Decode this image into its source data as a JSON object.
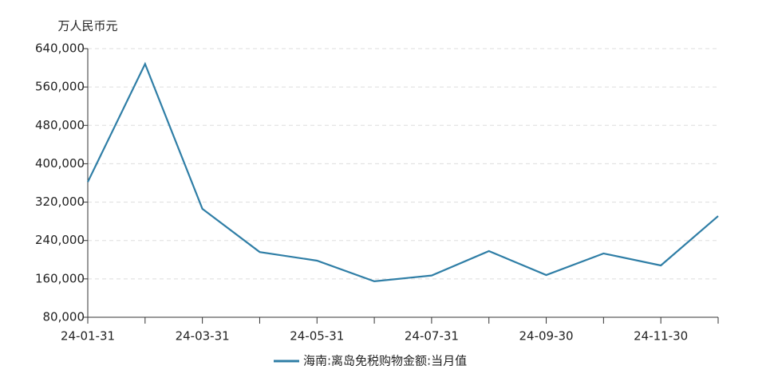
{
  "chart_data": {
    "type": "line",
    "y_label": "万人民币元",
    "categories": [
      "24-01-31",
      null,
      "24-03-31",
      null,
      "24-05-31",
      null,
      "24-07-31",
      null,
      "24-09-30",
      null,
      "24-11-30",
      null
    ],
    "series": [
      {
        "name": "海南:离岛免税购物金额:当月值",
        "color": "#2f7ea6",
        "values": [
          362000,
          608000,
          306000,
          216000,
          198000,
          155000,
          167000,
          218000,
          168000,
          213000,
          188000,
          291000
        ]
      }
    ],
    "ylim": [
      80000,
      640000
    ],
    "yticks": [
      {
        "value": 80000,
        "label": "80,000"
      },
      {
        "value": 160000,
        "label": "160,000"
      },
      {
        "value": 240000,
        "label": "240,000"
      },
      {
        "value": 320000,
        "label": "320,000"
      },
      {
        "value": 400000,
        "label": "400,000"
      },
      {
        "value": 480000,
        "label": "480,000"
      },
      {
        "value": 560000,
        "label": "560,000"
      },
      {
        "value": 640000,
        "label": "640,000"
      }
    ],
    "grid": true,
    "legend": "bottom"
  }
}
